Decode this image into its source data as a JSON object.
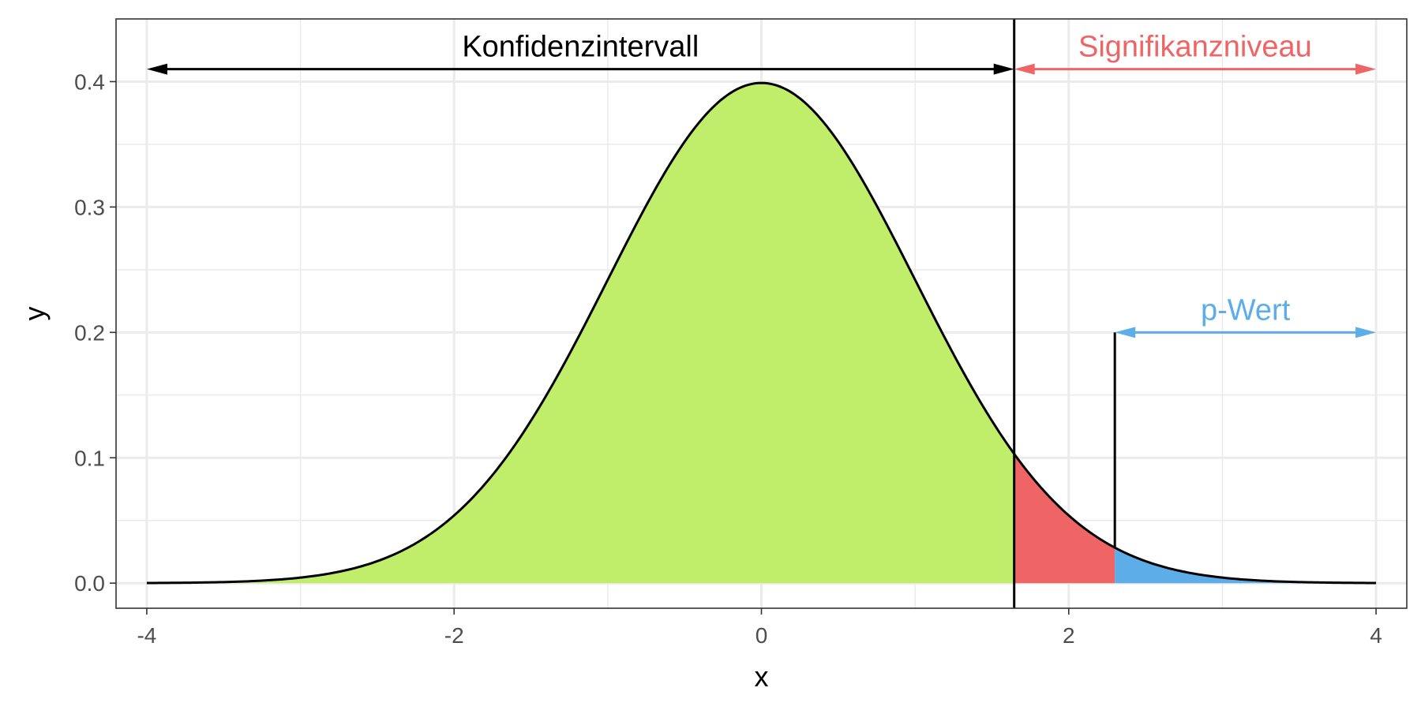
{
  "chart_data": {
    "type": "area",
    "distribution": "standard normal density",
    "xlabel": "x",
    "ylabel": "y",
    "xlim": [
      -4.2,
      4.2
    ],
    "ylim": [
      -0.02,
      0.45
    ],
    "x_ticks": [
      -4,
      -2,
      0,
      2,
      4
    ],
    "x_tick_labels": [
      "-4",
      "-2",
      "0",
      "2",
      "4"
    ],
    "y_ticks": [
      0.0,
      0.1,
      0.2,
      0.3,
      0.4
    ],
    "y_tick_labels": [
      "0.0",
      "0.1",
      "0.2",
      "0.3",
      "0.4"
    ],
    "grid": true,
    "legend": "none",
    "critical_value": 1.645,
    "test_statistic": 2.3,
    "regions": [
      {
        "from": -4,
        "to": 1.645,
        "color": "#c0ee6a"
      },
      {
        "from": 1.645,
        "to": 2.3,
        "color": "#ef6565"
      },
      {
        "from": 2.3,
        "to": 4,
        "color": "#5dade9"
      }
    ],
    "annotations": [
      {
        "label": "Konfidenzintervall",
        "from": -4,
        "to": 1.645,
        "y": 0.41,
        "color": "#000000"
      },
      {
        "label": "Signifikanzniveau",
        "from": 1.645,
        "to": 4,
        "y": 0.41,
        "color": "#ef6565"
      },
      {
        "label": "p-Wert",
        "from": 2.3,
        "to": 4,
        "y": 0.2,
        "color": "#5dade9"
      }
    ]
  }
}
